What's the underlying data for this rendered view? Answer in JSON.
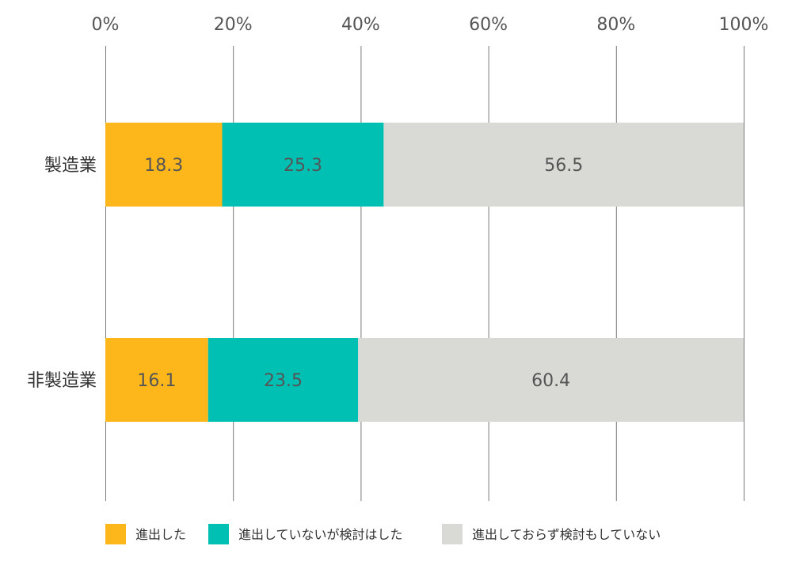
{
  "chart_data": {
    "type": "bar",
    "orientation": "horizontal",
    "stacked": true,
    "categories": [
      "製造業",
      "非製造業"
    ],
    "series": [
      {
        "name": "進出した",
        "values": [
          18.3,
          16.1
        ],
        "color": "#fdb71a"
      },
      {
        "name": "進出していないが検討はした",
        "values": [
          25.3,
          23.5
        ],
        "color": "#00bfb3"
      },
      {
        "name": "進出しておらず検討もしていない",
        "values": [
          56.5,
          60.4
        ],
        "color": "#d9d9d6"
      }
    ],
    "xlim": [
      0,
      100
    ],
    "x_ticks": [
      "0%",
      "20%",
      "40%",
      "60%",
      "80%",
      "100%"
    ],
    "x_tick_values": [
      0,
      20,
      40,
      60,
      80,
      100
    ],
    "grid": true,
    "legend_position": "bottom"
  }
}
